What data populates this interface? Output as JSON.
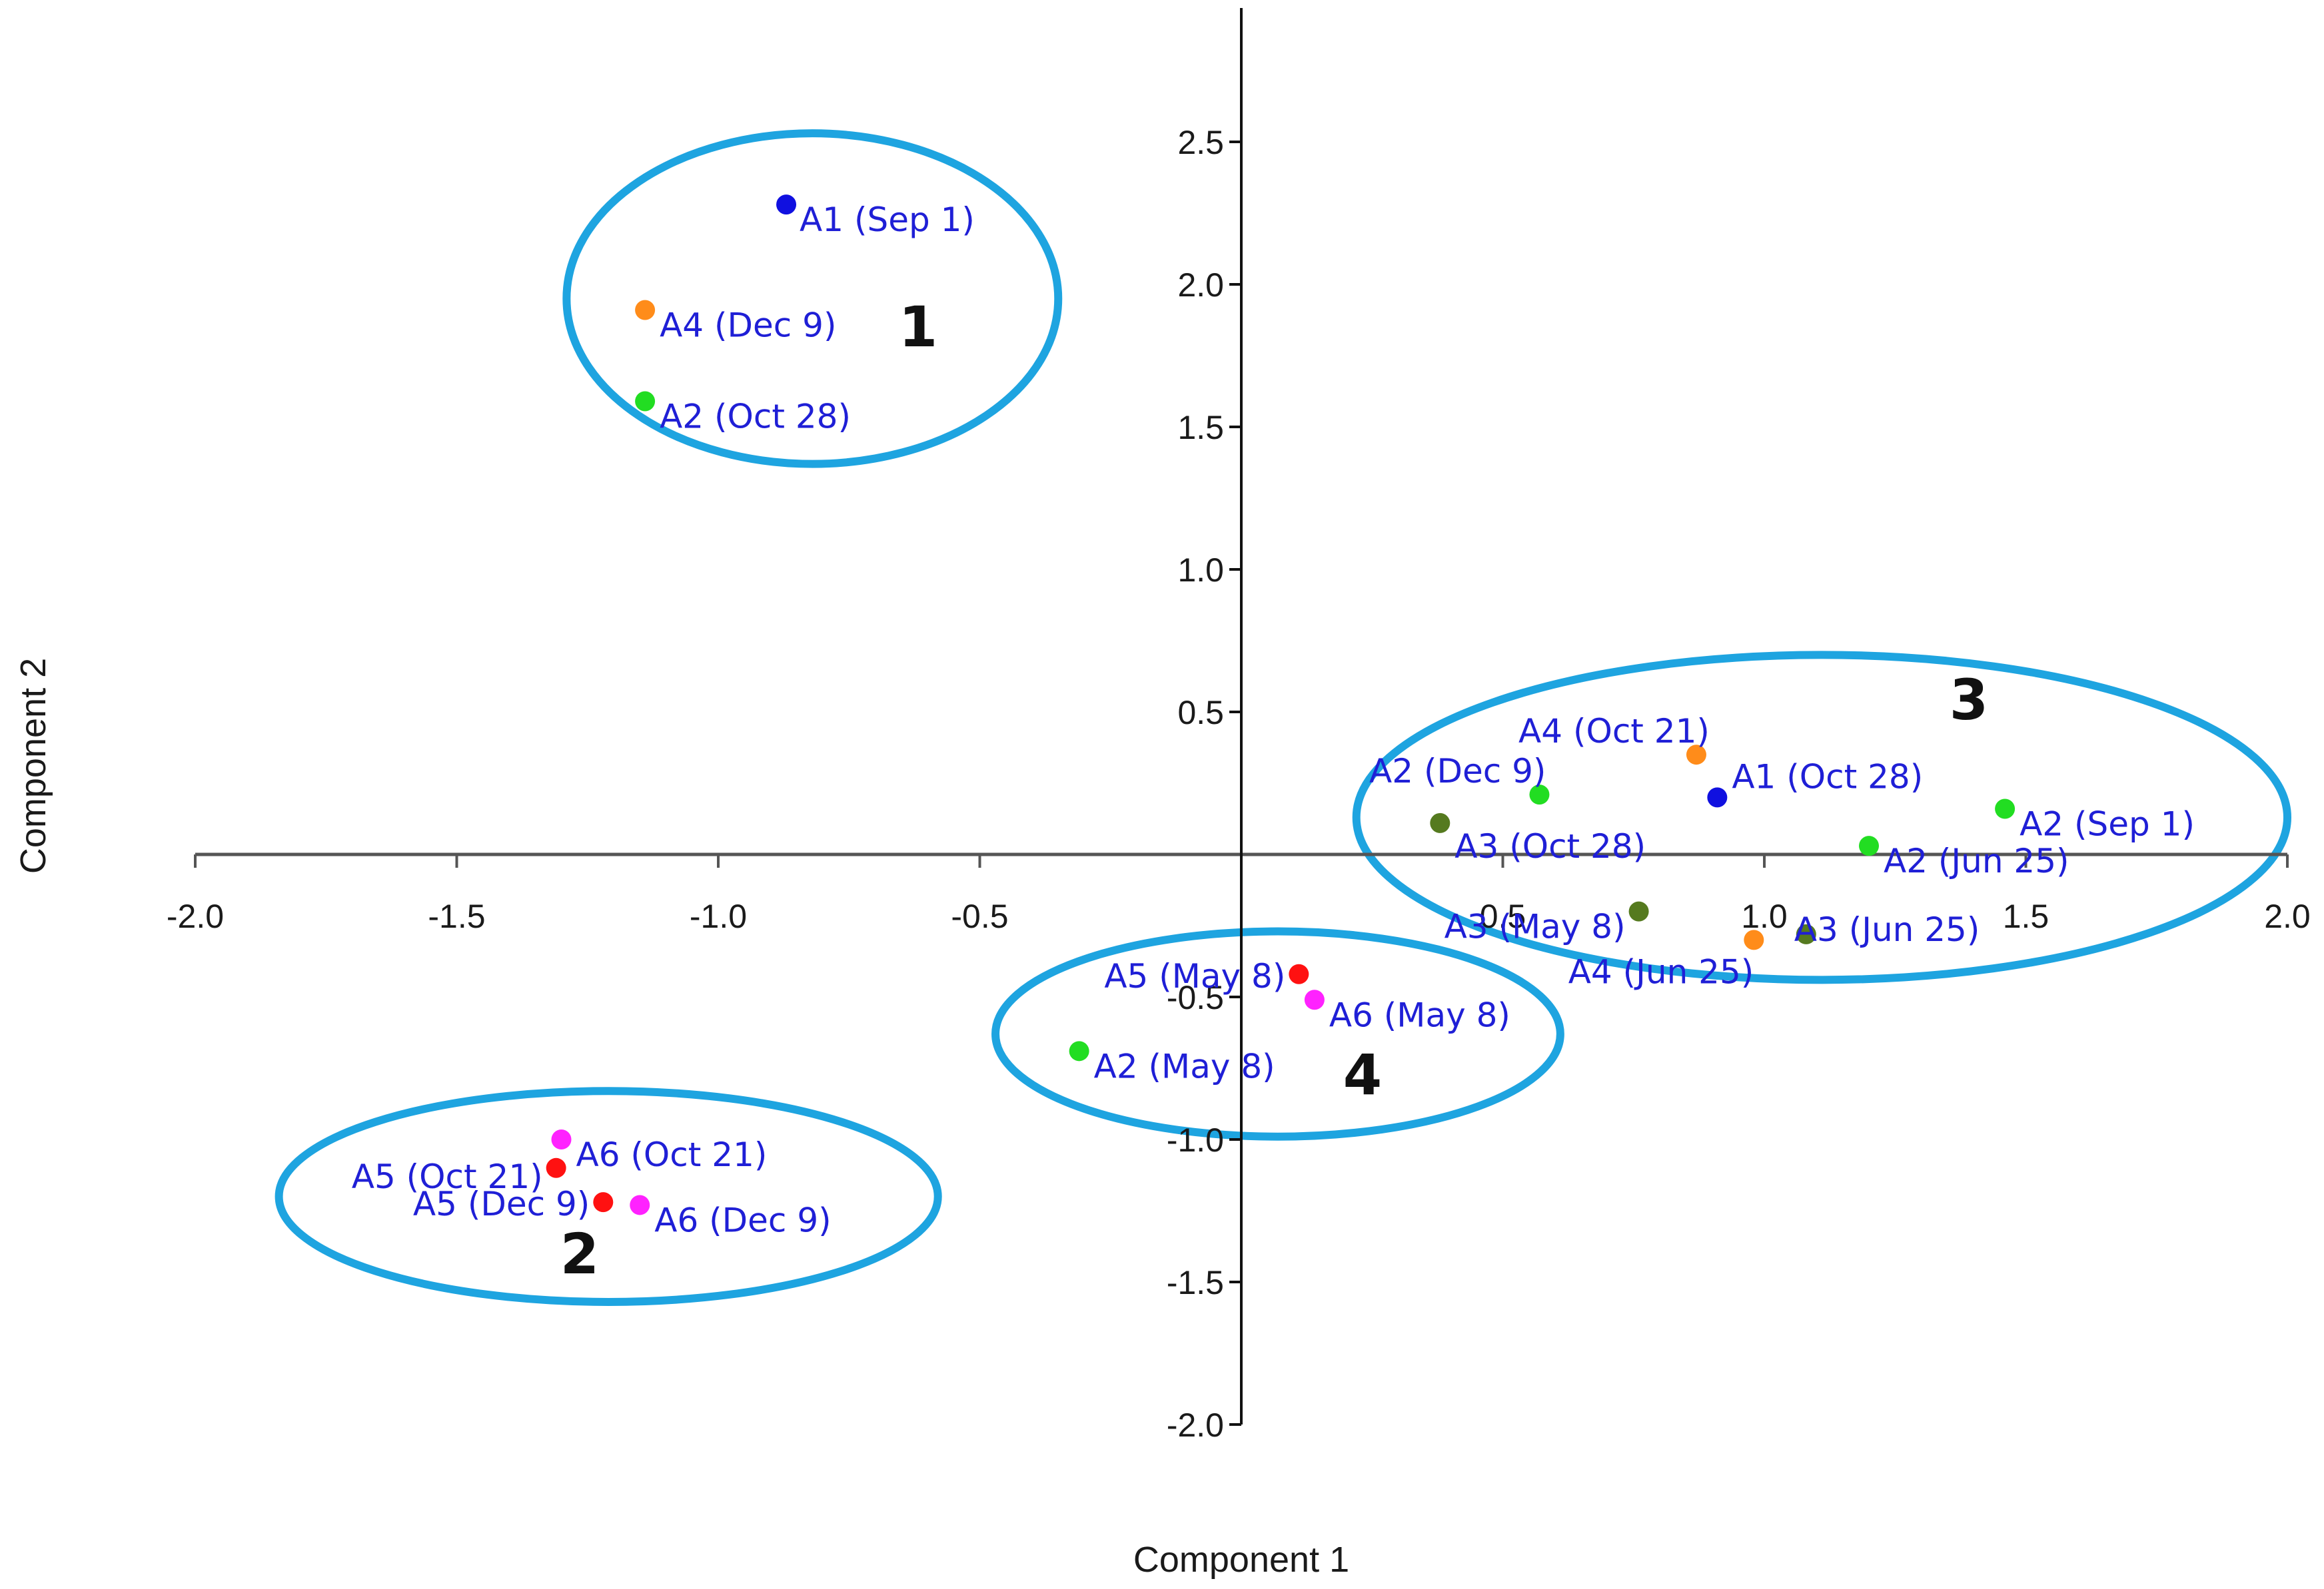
{
  "chart_data": {
    "type": "scatter",
    "title": "",
    "xlabel": "Component 1",
    "ylabel": "Component 2",
    "xlim": [
      -2.0,
      2.0
    ],
    "ylim": [
      -2.0,
      2.5
    ],
    "x_ticks": [
      "-2.0",
      "-1.5",
      "-1.0",
      "-0.5",
      "0.5",
      "1.0",
      "1.5",
      "2.0"
    ],
    "y_ticks": [
      "2.5",
      "2.0",
      "1.5",
      "1.0",
      "0.5",
      "-0.5",
      "-1.0",
      "-1.5",
      "-2.0"
    ],
    "grid": false,
    "points": [
      {
        "label": "A1 (Sep 1)",
        "x": -0.87,
        "y": 2.28,
        "color": "#1010e0"
      },
      {
        "label": "A4 (Dec 9)",
        "x": -1.14,
        "y": 1.91,
        "color": "#ff8c1a"
      },
      {
        "label": "A2 (Oct 28)",
        "x": -1.14,
        "y": 1.59,
        "color": "#22dd22"
      },
      {
        "label": "A4 (Oct 21)",
        "x": 0.87,
        "y": 0.35,
        "color": "#ff8c1a"
      },
      {
        "label": "A1 (Oct 28)",
        "x": 0.91,
        "y": 0.2,
        "color": "#1010e0"
      },
      {
        "label": "A2 (Dec 9)",
        "x": 0.57,
        "y": 0.21,
        "color": "#22dd22"
      },
      {
        "label": "A3 (Oct 28)",
        "x": 0.38,
        "y": 0.11,
        "color": "#557a1f"
      },
      {
        "label": "A2 (Sep 1)",
        "x": 1.46,
        "y": 0.16,
        "color": "#22dd22"
      },
      {
        "label": "A2 (Jun 25)",
        "x": 1.2,
        "y": 0.03,
        "color": "#22dd22"
      },
      {
        "label": "A3 (May 8)",
        "x": 0.76,
        "y": -0.2,
        "color": "#557a1f"
      },
      {
        "label": "A3 (Jun 25)",
        "x": 1.08,
        "y": -0.28,
        "color": "#557a1f"
      },
      {
        "label": "A4 (Jun 25)",
        "x": 0.98,
        "y": -0.3,
        "color": "#ff8c1a"
      },
      {
        "label": "A5 (May 8)",
        "x": 0.11,
        "y": -0.42,
        "color": "#ff1111"
      },
      {
        "label": "A6 (May 8)",
        "x": 0.14,
        "y": -0.51,
        "color": "#ff22ff"
      },
      {
        "label": "A2 (May 8)",
        "x": -0.31,
        "y": -0.69,
        "color": "#22dd22"
      },
      {
        "label": "A6 (Oct 21)",
        "x": -1.3,
        "y": -1.0,
        "color": "#ff22ff"
      },
      {
        "label": "A5 (Oct 21)",
        "x": -1.31,
        "y": -1.1,
        "color": "#ff1111"
      },
      {
        "label": "A5 (Dec 9)",
        "x": -1.22,
        "y": -1.22,
        "color": "#ff1111"
      },
      {
        "label": "A6 (Dec 9)",
        "x": -1.15,
        "y": -1.23,
        "color": "#ff22ff"
      }
    ],
    "clusters": [
      {
        "label": "1",
        "cx": -0.82,
        "cy": 1.95,
        "rx": 0.47,
        "ry": 0.58,
        "color": "#1ea4e0"
      },
      {
        "label": "2",
        "cx": -1.21,
        "cy": -1.2,
        "rx": 0.63,
        "ry": 0.37,
        "color": "#1ea4e0"
      },
      {
        "label": "3",
        "cx": 1.11,
        "cy": 0.13,
        "rx": 0.89,
        "ry": 0.57,
        "color": "#1ea4e0"
      },
      {
        "label": "4",
        "cx": 0.07,
        "cy": -0.63,
        "rx": 0.54,
        "ry": 0.36,
        "color": "#1ea4e0"
      }
    ]
  }
}
